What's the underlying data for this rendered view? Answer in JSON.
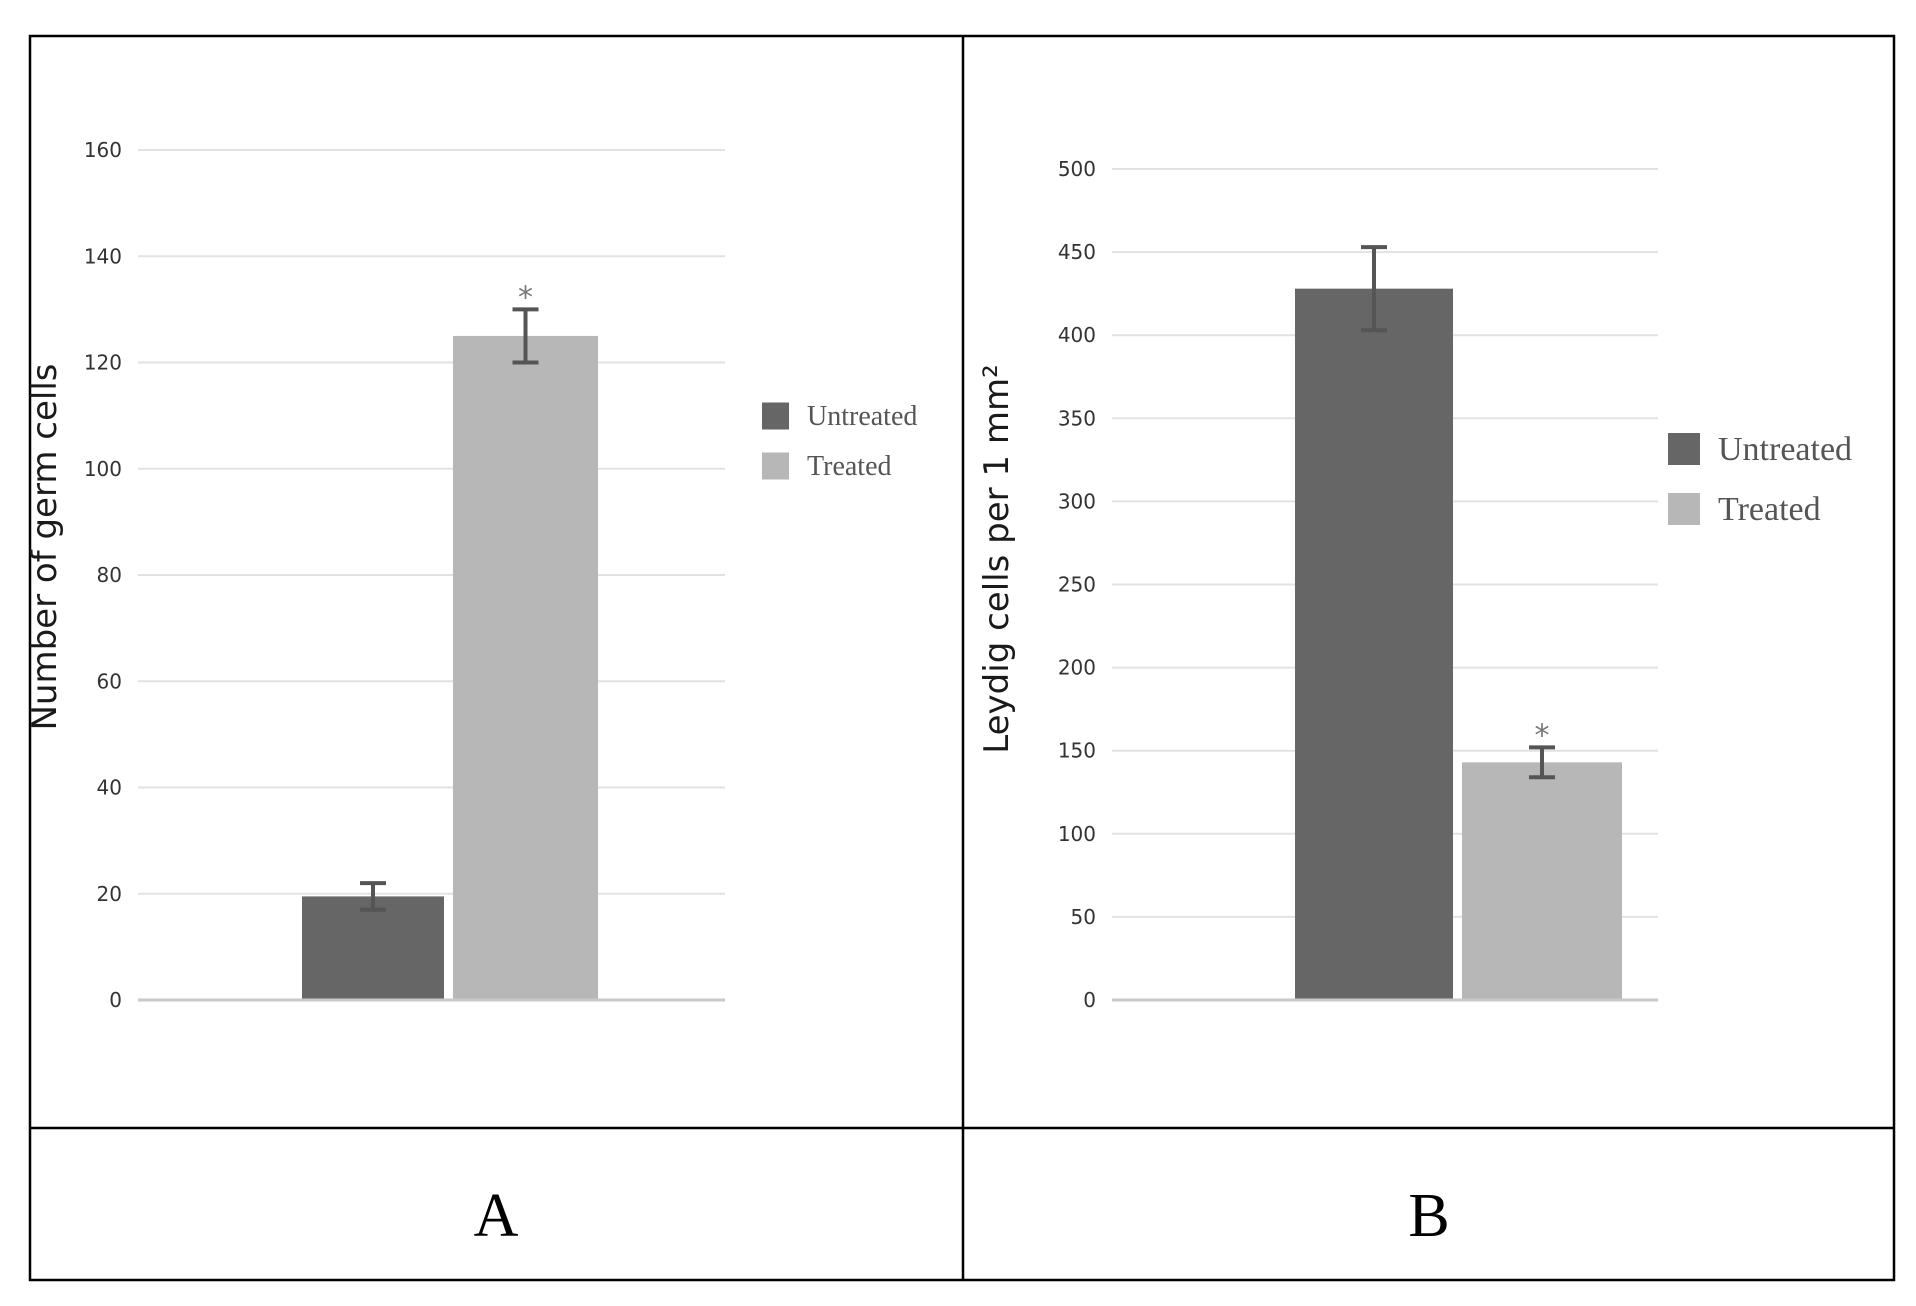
{
  "panels": [
    {
      "letter": "A"
    },
    {
      "letter": "B"
    }
  ],
  "chart_data": [
    {
      "type": "bar",
      "title": "",
      "xlabel": "",
      "ylabel": "Number of germ cells",
      "ylim": [
        0,
        160
      ],
      "yticks": [
        0,
        20,
        40,
        60,
        80,
        100,
        120,
        140,
        160
      ],
      "grid": true,
      "legend_position": "right",
      "series": [
        {
          "name": "Untreated",
          "value": 19.5,
          "error": 2.5,
          "color": "#666666",
          "significant": false
        },
        {
          "name": "Treated",
          "value": 125,
          "error": 5,
          "color": "#b7b7b7",
          "significant": true
        }
      ],
      "significance_marker": "*"
    },
    {
      "type": "bar",
      "title": "",
      "xlabel": "",
      "ylabel": "Leydig cells per 1 mm²",
      "ylim": [
        0,
        500
      ],
      "yticks": [
        0,
        50,
        100,
        150,
        200,
        250,
        300,
        350,
        400,
        450,
        500
      ],
      "grid": true,
      "legend_position": "right",
      "series": [
        {
          "name": "Untreated",
          "value": 428,
          "error": 25,
          "color": "#666666",
          "significant": false
        },
        {
          "name": "Treated",
          "value": 143,
          "error": 9,
          "color": "#b7b7b7",
          "significant": true
        }
      ],
      "significance_marker": "*"
    }
  ]
}
